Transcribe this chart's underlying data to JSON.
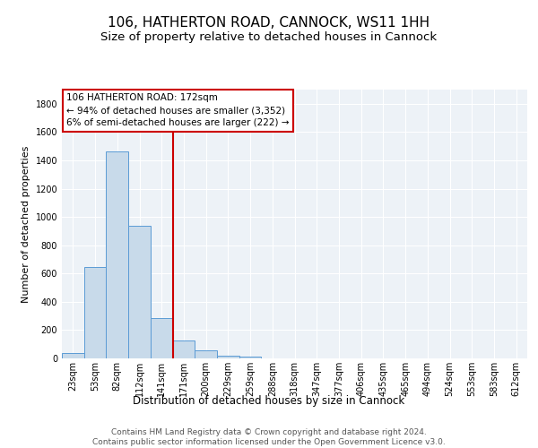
{
  "title": "106, HATHERTON ROAD, CANNOCK, WS11 1HH",
  "subtitle": "Size of property relative to detached houses in Cannock",
  "xlabel": "Distribution of detached houses by size in Cannock",
  "ylabel": "Number of detached properties",
  "bar_labels": [
    "23sqm",
    "53sqm",
    "82sqm",
    "112sqm",
    "141sqm",
    "171sqm",
    "200sqm",
    "229sqm",
    "259sqm",
    "288sqm",
    "318sqm",
    "347sqm",
    "377sqm",
    "406sqm",
    "435sqm",
    "465sqm",
    "494sqm",
    "524sqm",
    "553sqm",
    "583sqm",
    "612sqm"
  ],
  "bar_values": [
    35,
    645,
    1465,
    935,
    285,
    125,
    55,
    20,
    10,
    2,
    0,
    0,
    0,
    0,
    0,
    0,
    0,
    0,
    0,
    0,
    0
  ],
  "bar_color": "#c8daea",
  "bar_edge_color": "#5b9bd5",
  "ylim": [
    0,
    1900
  ],
  "yticks": [
    0,
    200,
    400,
    600,
    800,
    1000,
    1200,
    1400,
    1600,
    1800
  ],
  "vline_idx": 4.5,
  "vline_color": "#cc0000",
  "annotation_text": "106 HATHERTON ROAD: 172sqm\n← 94% of detached houses are smaller (3,352)\n6% of semi-detached houses are larger (222) →",
  "annotation_box_color": "#cc0000",
  "footer_line1": "Contains HM Land Registry data © Crown copyright and database right 2024.",
  "footer_line2": "Contains public sector information licensed under the Open Government Licence v3.0.",
  "bg_color": "#edf2f7",
  "title_fontsize": 11,
  "subtitle_fontsize": 9.5,
  "ylabel_fontsize": 8,
  "xlabel_fontsize": 8.5,
  "tick_fontsize": 7,
  "footer_fontsize": 6.5,
  "figwidth": 6.0,
  "figheight": 5.0,
  "dpi": 100
}
